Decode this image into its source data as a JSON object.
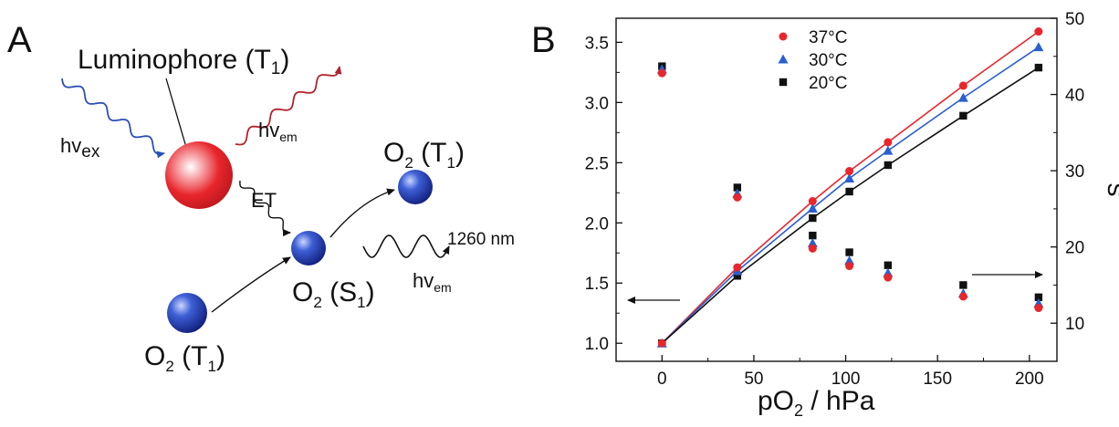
{
  "panel_a": {
    "letter": "A",
    "luminophore": {
      "main": "Luminophore (T",
      "sub": "1",
      "close": ")"
    },
    "hv_ex": {
      "main": "hv",
      "sub": "ex"
    },
    "hv_em_top": {
      "main": "hv",
      "sub": "em"
    },
    "hv_em_bottom": {
      "main": "hv",
      "sub": "em"
    },
    "et": "ET",
    "emission_wavelength": "1260 nm",
    "o2_top": {
      "o": "O",
      "two": "2",
      "state": " (T",
      "sub": "1",
      "close": ")"
    },
    "o2_mid": {
      "o": "O",
      "two": "2",
      "state": " (S",
      "sub": "1",
      "close": ")"
    },
    "o2_bottom": {
      "o": "O",
      "two": "2",
      "state": " (T",
      "sub": "1",
      "close": ")"
    },
    "colors": {
      "luminophore": "#e8262c",
      "oxygen": "#1b2f9c",
      "excitation_wave": "#2a4fb8",
      "emission_wave": "#b3222c"
    }
  },
  "panel_b": {
    "letter": "B"
  },
  "chart_data": {
    "type": "scatter",
    "xlabel": {
      "main": "pO",
      "sub": "2",
      "rest": " / hPa"
    },
    "ylabel_left": "",
    "ylabel_right": "s",
    "xlim": [
      -25,
      215
    ],
    "ylim_left": [
      0.85,
      3.7
    ],
    "ylim_right": [
      5,
      50
    ],
    "x_ticks": [
      "0",
      "50",
      "100",
      "150",
      "200"
    ],
    "y_left_ticks": [
      "1.0",
      "1.5",
      "2.0",
      "2.5",
      "3.0",
      "3.5"
    ],
    "y_right_ticks": [
      "10",
      "20",
      "30",
      "40",
      "50"
    ],
    "legend_position": "top-center",
    "x": [
      0,
      41,
      82,
      102,
      123,
      164,
      205
    ],
    "series": [
      {
        "name": "37°C",
        "marker": "circle",
        "color": "#e8262c",
        "left_values": [
          1.0,
          1.63,
          2.18,
          2.43,
          2.67,
          3.14,
          3.59
        ],
        "right_values": [
          42.8,
          26.5,
          19.8,
          17.5,
          16.0,
          13.5,
          12.0
        ]
      },
      {
        "name": "30°C",
        "marker": "triangle",
        "color": "#2a5fd0",
        "left_values": [
          1.0,
          1.6,
          2.12,
          2.37,
          2.6,
          3.04,
          3.46
        ],
        "right_values": [
          43.3,
          27.0,
          20.5,
          18.2,
          16.6,
          13.9,
          12.6
        ]
      },
      {
        "name": "20°C",
        "marker": "square",
        "color": "#111111",
        "left_values": [
          1.0,
          1.56,
          2.04,
          2.26,
          2.48,
          2.89,
          3.29
        ],
        "right_values": [
          43.7,
          27.8,
          21.5,
          19.3,
          17.6,
          15.0,
          13.4
        ]
      }
    ]
  }
}
